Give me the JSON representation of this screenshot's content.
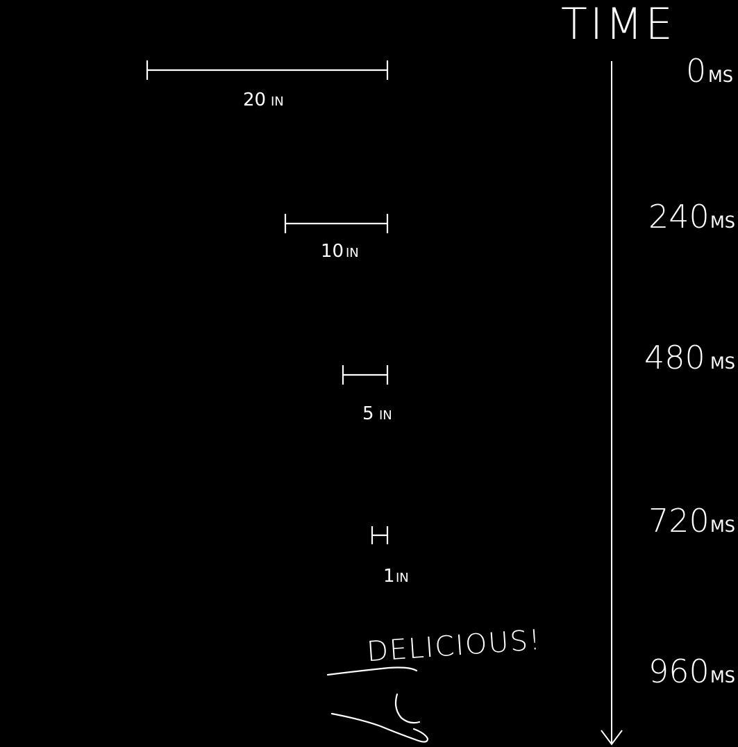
{
  "title": "TIME",
  "steps": [
    {
      "time_value": "0",
      "time_unit": "MS",
      "distance_value": "20",
      "distance_unit": "IN"
    },
    {
      "time_value": "240",
      "time_unit": "MS",
      "distance_value": "10",
      "distance_unit": "IN"
    },
    {
      "time_value": "480",
      "time_unit": "MS",
      "distance_value": "5",
      "distance_unit": "IN"
    },
    {
      "time_value": "720",
      "time_unit": "MS",
      "distance_value": "1",
      "distance_unit": "IN"
    },
    {
      "time_value": "960",
      "time_unit": "MS",
      "exclamation": "DELICIOUS!"
    }
  ],
  "icons": [
    "hand-icon",
    "muffin-icon",
    "down-arrow-icon"
  ]
}
